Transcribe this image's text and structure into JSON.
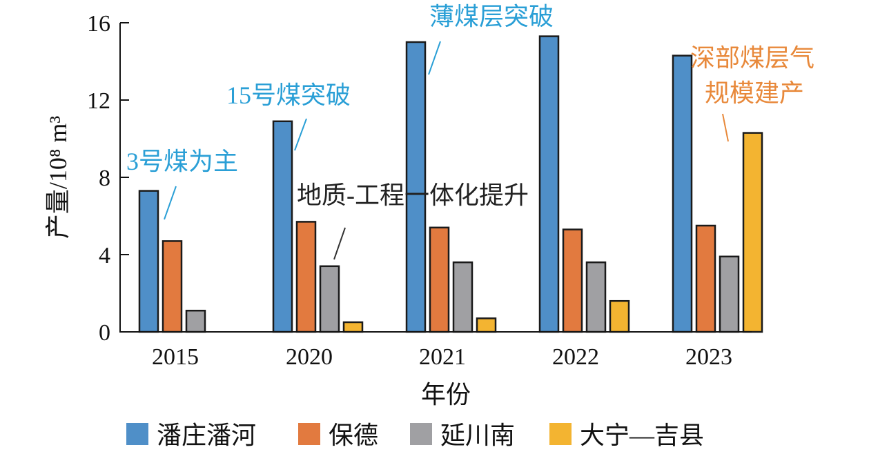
{
  "chart_data": {
    "type": "bar",
    "title": "",
    "xlabel": "年份",
    "ylabel": "产量/10⁸ m³",
    "ylim": [
      0,
      16
    ],
    "yticks": [
      0,
      4,
      8,
      12,
      16
    ],
    "grid": false,
    "legend_position": "bottom",
    "categories": [
      "2015",
      "2020",
      "2021",
      "2022",
      "2023"
    ],
    "series": [
      {
        "name": "潘庄潘河",
        "color": "#4f8fc8",
        "values": [
          7.3,
          10.9,
          15.0,
          15.3,
          14.3
        ]
      },
      {
        "name": "保德",
        "color": "#e27a3f",
        "values": [
          4.7,
          5.7,
          5.4,
          5.3,
          5.5
        ]
      },
      {
        "name": "延川南",
        "color": "#a0a0a3",
        "values": [
          1.1,
          3.4,
          3.6,
          3.6,
          3.9
        ]
      },
      {
        "name": "大宁—吉县",
        "color": "#f3b431",
        "values": [
          0,
          0.5,
          0.7,
          1.6,
          10.3
        ]
      }
    ],
    "annotations": [
      {
        "text": "3号煤为主",
        "color": "#2a9fd6"
      },
      {
        "text": "15号煤突破",
        "color": "#2a9fd6"
      },
      {
        "text": "地质-工程一体化提升",
        "color": "#222222"
      },
      {
        "text": "薄煤层突破",
        "color": "#2a9fd6"
      },
      {
        "text": "深部煤层气",
        "color": "#e8893b"
      },
      {
        "text": "规模建产",
        "color": "#e8893b"
      }
    ]
  }
}
